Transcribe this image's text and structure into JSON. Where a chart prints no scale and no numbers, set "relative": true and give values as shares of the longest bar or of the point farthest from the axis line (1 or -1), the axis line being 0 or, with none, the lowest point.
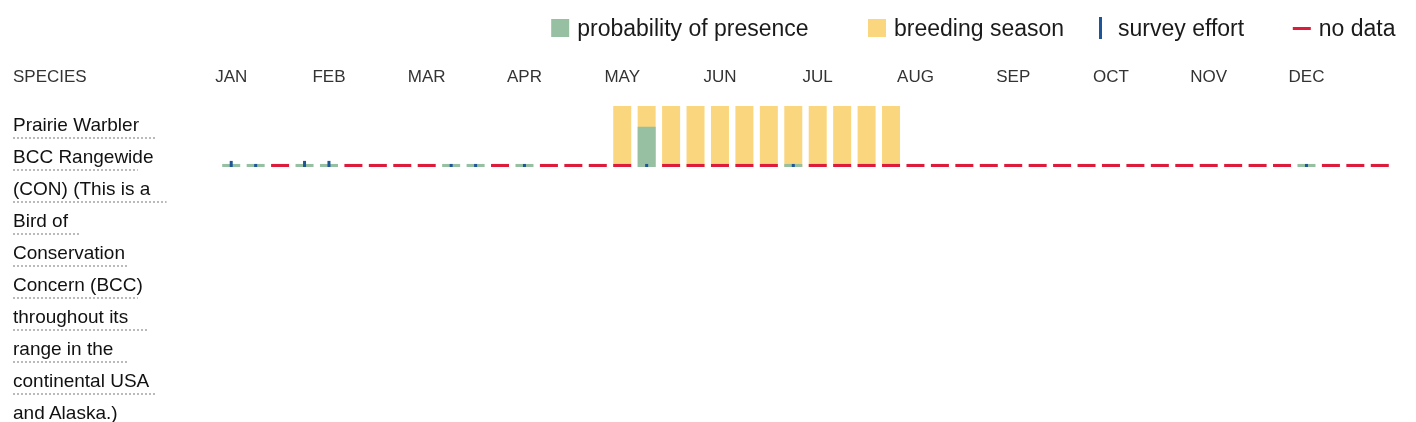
{
  "chart_data": {
    "type": "bar",
    "relative": true,
    "legend": "top right",
    "annotations": [
      "SPECIES",
      "Prairie Warbler BCC Rangewide (CON) (This is a Bird of Conservation Concern (BCC) throughout its range in the continental USA and Alaska.)"
    ],
    "categories": [
      "JAN",
      null,
      null,
      null,
      "FEB",
      null,
      null,
      null,
      "MAR",
      null,
      null,
      null,
      "APR",
      null,
      null,
      null,
      "MAY",
      null,
      null,
      null,
      "JUN",
      null,
      null,
      null,
      "JUL",
      null,
      null,
      null,
      "AUG",
      null,
      null,
      null,
      "SEP",
      null,
      null,
      null,
      "OCT",
      null,
      null,
      null,
      "NOV",
      null,
      null,
      null,
      "DEC",
      null,
      null,
      null
    ],
    "series": [
      {
        "name": "breeding season",
        "color": "#fad77f",
        "values": [
          null,
          null,
          null,
          null,
          null,
          null,
          null,
          null,
          null,
          null,
          null,
          null,
          null,
          null,
          null,
          null,
          1,
          1,
          1,
          1,
          1,
          1,
          1,
          1,
          1,
          1,
          1,
          1,
          null,
          null,
          null,
          null,
          null,
          null,
          null,
          null,
          null,
          null,
          null,
          null,
          null,
          null,
          null,
          null,
          null,
          null,
          null,
          null
        ]
      },
      {
        "name": "probability of presence",
        "color": "#96c0a1",
        "values": [
          0.05,
          0.05,
          null,
          0.05,
          0.05,
          null,
          null,
          null,
          null,
          0.05,
          0.05,
          null,
          0.05,
          null,
          null,
          null,
          null,
          0.66,
          null,
          null,
          null,
          null,
          null,
          0.05,
          null,
          null,
          null,
          null,
          null,
          null,
          null,
          null,
          null,
          null,
          null,
          null,
          null,
          null,
          null,
          null,
          null,
          null,
          null,
          null,
          0.05,
          null,
          null,
          null
        ]
      },
      {
        "name": "no data",
        "color": "#dc1c3a",
        "values": [
          null,
          null,
          0.05,
          null,
          null,
          0.05,
          0.05,
          0.05,
          0.05,
          null,
          null,
          0.05,
          null,
          0.05,
          0.05,
          0.05,
          0.05,
          null,
          0.05,
          0.05,
          0.05,
          0.05,
          0.05,
          null,
          0.05,
          0.05,
          0.05,
          0.05,
          0.05,
          0.05,
          0.05,
          0.05,
          0.05,
          0.05,
          0.05,
          0.05,
          0.05,
          0.05,
          0.05,
          0.05,
          0.05,
          0.05,
          0.05,
          0.05,
          null,
          0.05,
          0.05,
          0.05
        ]
      },
      {
        "name": "survey effort",
        "color": "#1e5598",
        "values": [
          0.1,
          0.05,
          null,
          0.1,
          0.1,
          null,
          null,
          null,
          null,
          0.05,
          0.05,
          null,
          0.05,
          null,
          null,
          null,
          null,
          0.05,
          null,
          null,
          null,
          null,
          null,
          0.05,
          null,
          null,
          null,
          null,
          null,
          null,
          null,
          null,
          null,
          null,
          null,
          null,
          null,
          null,
          null,
          null,
          null,
          null,
          null,
          null,
          0.05,
          null,
          null,
          null
        ]
      }
    ]
  }
}
